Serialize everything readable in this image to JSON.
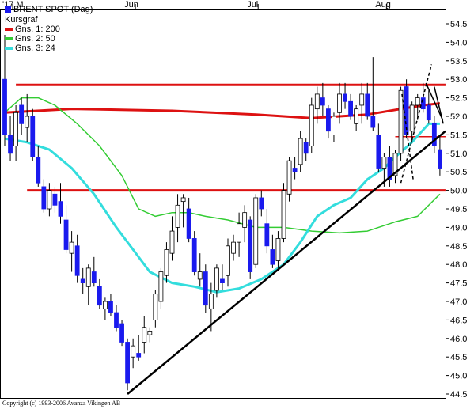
{
  "chart_data": {
    "type": "candlestick",
    "title": "BRENT SPOT (Dag)",
    "subtitle": "Kursgraf",
    "copyright": "Copyright (c) 1993-2006 Avanza Vikingen AB",
    "months": [
      {
        "label": "'17 M",
        "bar": 0
      },
      {
        "label": "Jun",
        "bar": 22
      },
      {
        "label": "Jul",
        "bar": 44
      },
      {
        "label": "Aug",
        "bar": 67
      }
    ],
    "y_axis": {
      "min": 44.5,
      "max": 54.5,
      "position": "right",
      "ticks": [
        "44.5",
        "45.0",
        "45.5",
        "46.0",
        "46.5",
        "47.0",
        "47.5",
        "48.0",
        "48.5",
        "49.0",
        "49.5",
        "50.0",
        "50.5",
        "51.0",
        "51.5",
        "52.0",
        "52.5",
        "53.0",
        "53.5",
        "54.0",
        "54.5"
      ]
    },
    "grid": false,
    "legend_position": "top-left",
    "legend": [
      {
        "label": "Gns. 1: 200",
        "color": "#dd1111"
      },
      {
        "label": "Gns. 2: 50",
        "color": "#33cc33"
      },
      {
        "label": "Gns. 3: 24",
        "color": "#33dddd"
      }
    ],
    "colors": {
      "up_candle": "#ffffff",
      "down_candle": "#1a1aee",
      "wick": "#000000",
      "trendline": "#000000",
      "support_line": "#dd1111"
    },
    "candles": [
      [
        53.0,
        54.2,
        51.2,
        51.5
      ],
      [
        51.5,
        52.0,
        50.8,
        51.0
      ],
      [
        51.2,
        52.3,
        50.8,
        52.1
      ],
      [
        52.3,
        52.5,
        51.5,
        51.8
      ],
      [
        51.7,
        52.6,
        51.3,
        52.0
      ],
      [
        52.0,
        52.2,
        50.8,
        50.9
      ],
      [
        50.9,
        51.2,
        50.1,
        50.2
      ],
      [
        50.1,
        50.3,
        49.4,
        49.5
      ],
      [
        49.5,
        50.2,
        49.3,
        50.0
      ],
      [
        49.9,
        50.1,
        49.4,
        49.6
      ],
      [
        49.7,
        50.2,
        49.1,
        49.3
      ],
      [
        49.2,
        49.6,
        48.3,
        48.4
      ],
      [
        48.3,
        48.9,
        47.8,
        48.6
      ],
      [
        48.5,
        48.8,
        47.5,
        47.7
      ],
      [
        47.6,
        47.9,
        47.2,
        47.5
      ],
      [
        47.4,
        48.0,
        46.9,
        47.9
      ],
      [
        47.8,
        48.2,
        47.4,
        47.5
      ],
      [
        47.4,
        47.6,
        46.8,
        46.9
      ],
      [
        46.8,
        47.1,
        46.5,
        47.0
      ],
      [
        47.0,
        47.2,
        46.6,
        46.7
      ],
      [
        46.7,
        46.9,
        46.2,
        46.3
      ],
      [
        46.4,
        46.5,
        45.8,
        45.9
      ],
      [
        45.9,
        46.0,
        44.6,
        44.8
      ],
      [
        45.5,
        46.0,
        45.2,
        45.8
      ],
      [
        45.6,
        46.1,
        45.4,
        45.5
      ],
      [
        45.9,
        46.6,
        45.6,
        46.3
      ],
      [
        46.1,
        46.3,
        45.9,
        46.2
      ],
      [
        46.5,
        47.3,
        46.3,
        47.2
      ],
      [
        47.0,
        47.9,
        46.8,
        47.8
      ],
      [
        47.7,
        48.6,
        47.5,
        48.4
      ],
      [
        48.3,
        49.3,
        48.1,
        48.9
      ],
      [
        49.0,
        49.9,
        48.6,
        49.6
      ],
      [
        49.7,
        49.9,
        49.0,
        49.8
      ],
      [
        49.5,
        49.8,
        48.6,
        48.7
      ],
      [
        48.7,
        48.9,
        47.7,
        47.8
      ],
      [
        47.6,
        48.3,
        47.4,
        47.8
      ],
      [
        47.8,
        48.0,
        46.7,
        46.9
      ],
      [
        46.8,
        47.5,
        46.2,
        47.2
      ],
      [
        47.3,
        48.0,
        47.1,
        47.9
      ],
      [
        47.6,
        48.0,
        47.3,
        47.5
      ],
      [
        47.7,
        48.7,
        47.4,
        48.5
      ],
      [
        48.3,
        48.8,
        48.1,
        48.6
      ],
      [
        48.6,
        49.4,
        48.2,
        49.1
      ],
      [
        49.0,
        49.6,
        48.6,
        49.4
      ],
      [
        49.2,
        49.3,
        47.6,
        47.8
      ],
      [
        48.0,
        49.9,
        47.9,
        49.8
      ],
      [
        49.8,
        50.0,
        49.3,
        49.5
      ],
      [
        49.1,
        49.5,
        48.3,
        48.5
      ],
      [
        48.4,
        48.8,
        47.9,
        48.0
      ],
      [
        48.1,
        48.9,
        47.9,
        48.7
      ],
      [
        48.7,
        50.2,
        48.6,
        50.0
      ],
      [
        49.9,
        50.9,
        49.7,
        50.8
      ],
      [
        50.6,
        50.9,
        50.3,
        50.5
      ],
      [
        50.7,
        51.6,
        50.5,
        51.4
      ],
      [
        51.3,
        51.4,
        50.8,
        51.0
      ],
      [
        51.2,
        52.5,
        51.0,
        52.3
      ],
      [
        52.2,
        52.8,
        51.8,
        52.6
      ],
      [
        52.5,
        52.9,
        52.0,
        52.3
      ],
      [
        52.2,
        52.3,
        51.4,
        51.6
      ],
      [
        51.5,
        52.1,
        51.3,
        52.0
      ],
      [
        52.1,
        52.9,
        51.8,
        52.6
      ],
      [
        52.6,
        52.9,
        52.2,
        52.4
      ],
      [
        52.4,
        52.6,
        51.9,
        52.0
      ],
      [
        51.8,
        52.3,
        51.6,
        52.2
      ],
      [
        52.3,
        52.9,
        51.8,
        52.6
      ],
      [
        52.6,
        52.9,
        51.9,
        52.0
      ],
      [
        52.0,
        53.6,
        51.6,
        51.7
      ],
      [
        51.5,
        51.8,
        50.5,
        50.6
      ],
      [
        50.6,
        51.0,
        50.1,
        50.9
      ],
      [
        50.9,
        51.2,
        50.1,
        50.3
      ],
      [
        50.4,
        51.1,
        50.2,
        51.0
      ],
      [
        51.0,
        52.8,
        50.8,
        52.7
      ],
      [
        52.8,
        53.0,
        51.4,
        51.5
      ],
      [
        51.6,
        52.4,
        51.3,
        52.3
      ],
      [
        52.3,
        52.6,
        51.9,
        52.5
      ],
      [
        52.5,
        52.9,
        52.1,
        52.2
      ],
      [
        52.3,
        52.7,
        51.8,
        51.9
      ],
      [
        51.8,
        52.0,
        51.0,
        51.2
      ],
      [
        51.1,
        51.5,
        50.4,
        50.6
      ]
    ],
    "series": [
      {
        "name": "Gns. 1: 200",
        "color": "#dd1111",
        "width": 3,
        "points": [
          [
            0,
            52.1
          ],
          [
            12,
            52.2
          ],
          [
            30,
            52.15
          ],
          [
            45,
            52.05
          ],
          [
            55,
            51.95
          ],
          [
            65,
            52.05
          ],
          [
            75,
            52.3
          ],
          [
            78,
            52.35
          ]
        ]
      },
      {
        "name": "Gns. 2: 50",
        "color": "#33cc33",
        "width": 1.5,
        "points": [
          [
            0,
            52.1
          ],
          [
            3,
            52.5
          ],
          [
            6,
            52.5
          ],
          [
            9,
            52.3
          ],
          [
            13,
            51.8
          ],
          [
            17,
            51.2
          ],
          [
            21,
            50.4
          ],
          [
            24,
            49.5
          ],
          [
            27,
            49.3
          ],
          [
            30,
            49.4
          ],
          [
            33,
            49.4
          ],
          [
            36,
            49.3
          ],
          [
            40,
            49.2
          ],
          [
            45,
            49.0
          ],
          [
            50,
            49.0
          ],
          [
            55,
            48.9
          ],
          [
            60,
            48.85
          ],
          [
            65,
            48.9
          ],
          [
            70,
            49.15
          ],
          [
            74,
            49.3
          ],
          [
            78,
            49.9
          ]
        ]
      },
      {
        "name": "Gns. 3: 24",
        "color": "#33dddd",
        "width": 3,
        "points": [
          [
            0,
            51.4
          ],
          [
            4,
            51.3
          ],
          [
            8,
            51.1
          ],
          [
            12,
            50.6
          ],
          [
            16,
            49.9
          ],
          [
            20,
            49.0
          ],
          [
            23,
            48.4
          ],
          [
            26,
            47.8
          ],
          [
            30,
            47.5
          ],
          [
            34,
            47.4
          ],
          [
            38,
            47.25
          ],
          [
            42,
            47.35
          ],
          [
            46,
            47.6
          ],
          [
            50,
            48.0
          ],
          [
            53,
            48.6
          ],
          [
            56,
            49.3
          ],
          [
            59,
            49.6
          ],
          [
            62,
            49.8
          ],
          [
            65,
            50.3
          ],
          [
            68,
            50.6
          ],
          [
            70,
            50.9
          ],
          [
            73,
            51.3
          ],
          [
            76,
            51.8
          ],
          [
            78,
            51.8
          ]
        ]
      }
    ],
    "horizontal_lines": [
      {
        "y": 52.85,
        "from": 2,
        "to": 79,
        "color": "#dd1111",
        "width": 3
      },
      {
        "y": 50.0,
        "from": 4,
        "to": 79,
        "color": "#dd1111",
        "width": 3
      },
      {
        "y": 51.45,
        "from": 70,
        "to": 79,
        "color": "#dd1111",
        "width": 1.5
      }
    ],
    "trendlines": [
      {
        "from": [
          22,
          44.5
        ],
        "to": [
          79,
          51.6
        ],
        "color": "#000000",
        "width": 2.5,
        "dashed": false
      },
      {
        "from": [
          71,
          50.2
        ],
        "to": [
          76.5,
          53.4
        ],
        "color": "#000000",
        "width": 1.5,
        "dashed": true
      },
      {
        "from": [
          75.5,
          52.9
        ],
        "to": [
          78.5,
          51.9
        ],
        "color": "#000000",
        "width": 1.5,
        "dashed": false
      },
      {
        "from": [
          73.2,
          50.3
        ],
        "to": [
          71.2,
          52.6
        ],
        "color": "#000000",
        "width": 1.5,
        "dashed": true
      },
      {
        "from": [
          77.0,
          52.8
        ],
        "to": [
          78.6,
          51.8
        ],
        "color": "#000000",
        "width": 1.5,
        "dashed": false
      }
    ]
  }
}
